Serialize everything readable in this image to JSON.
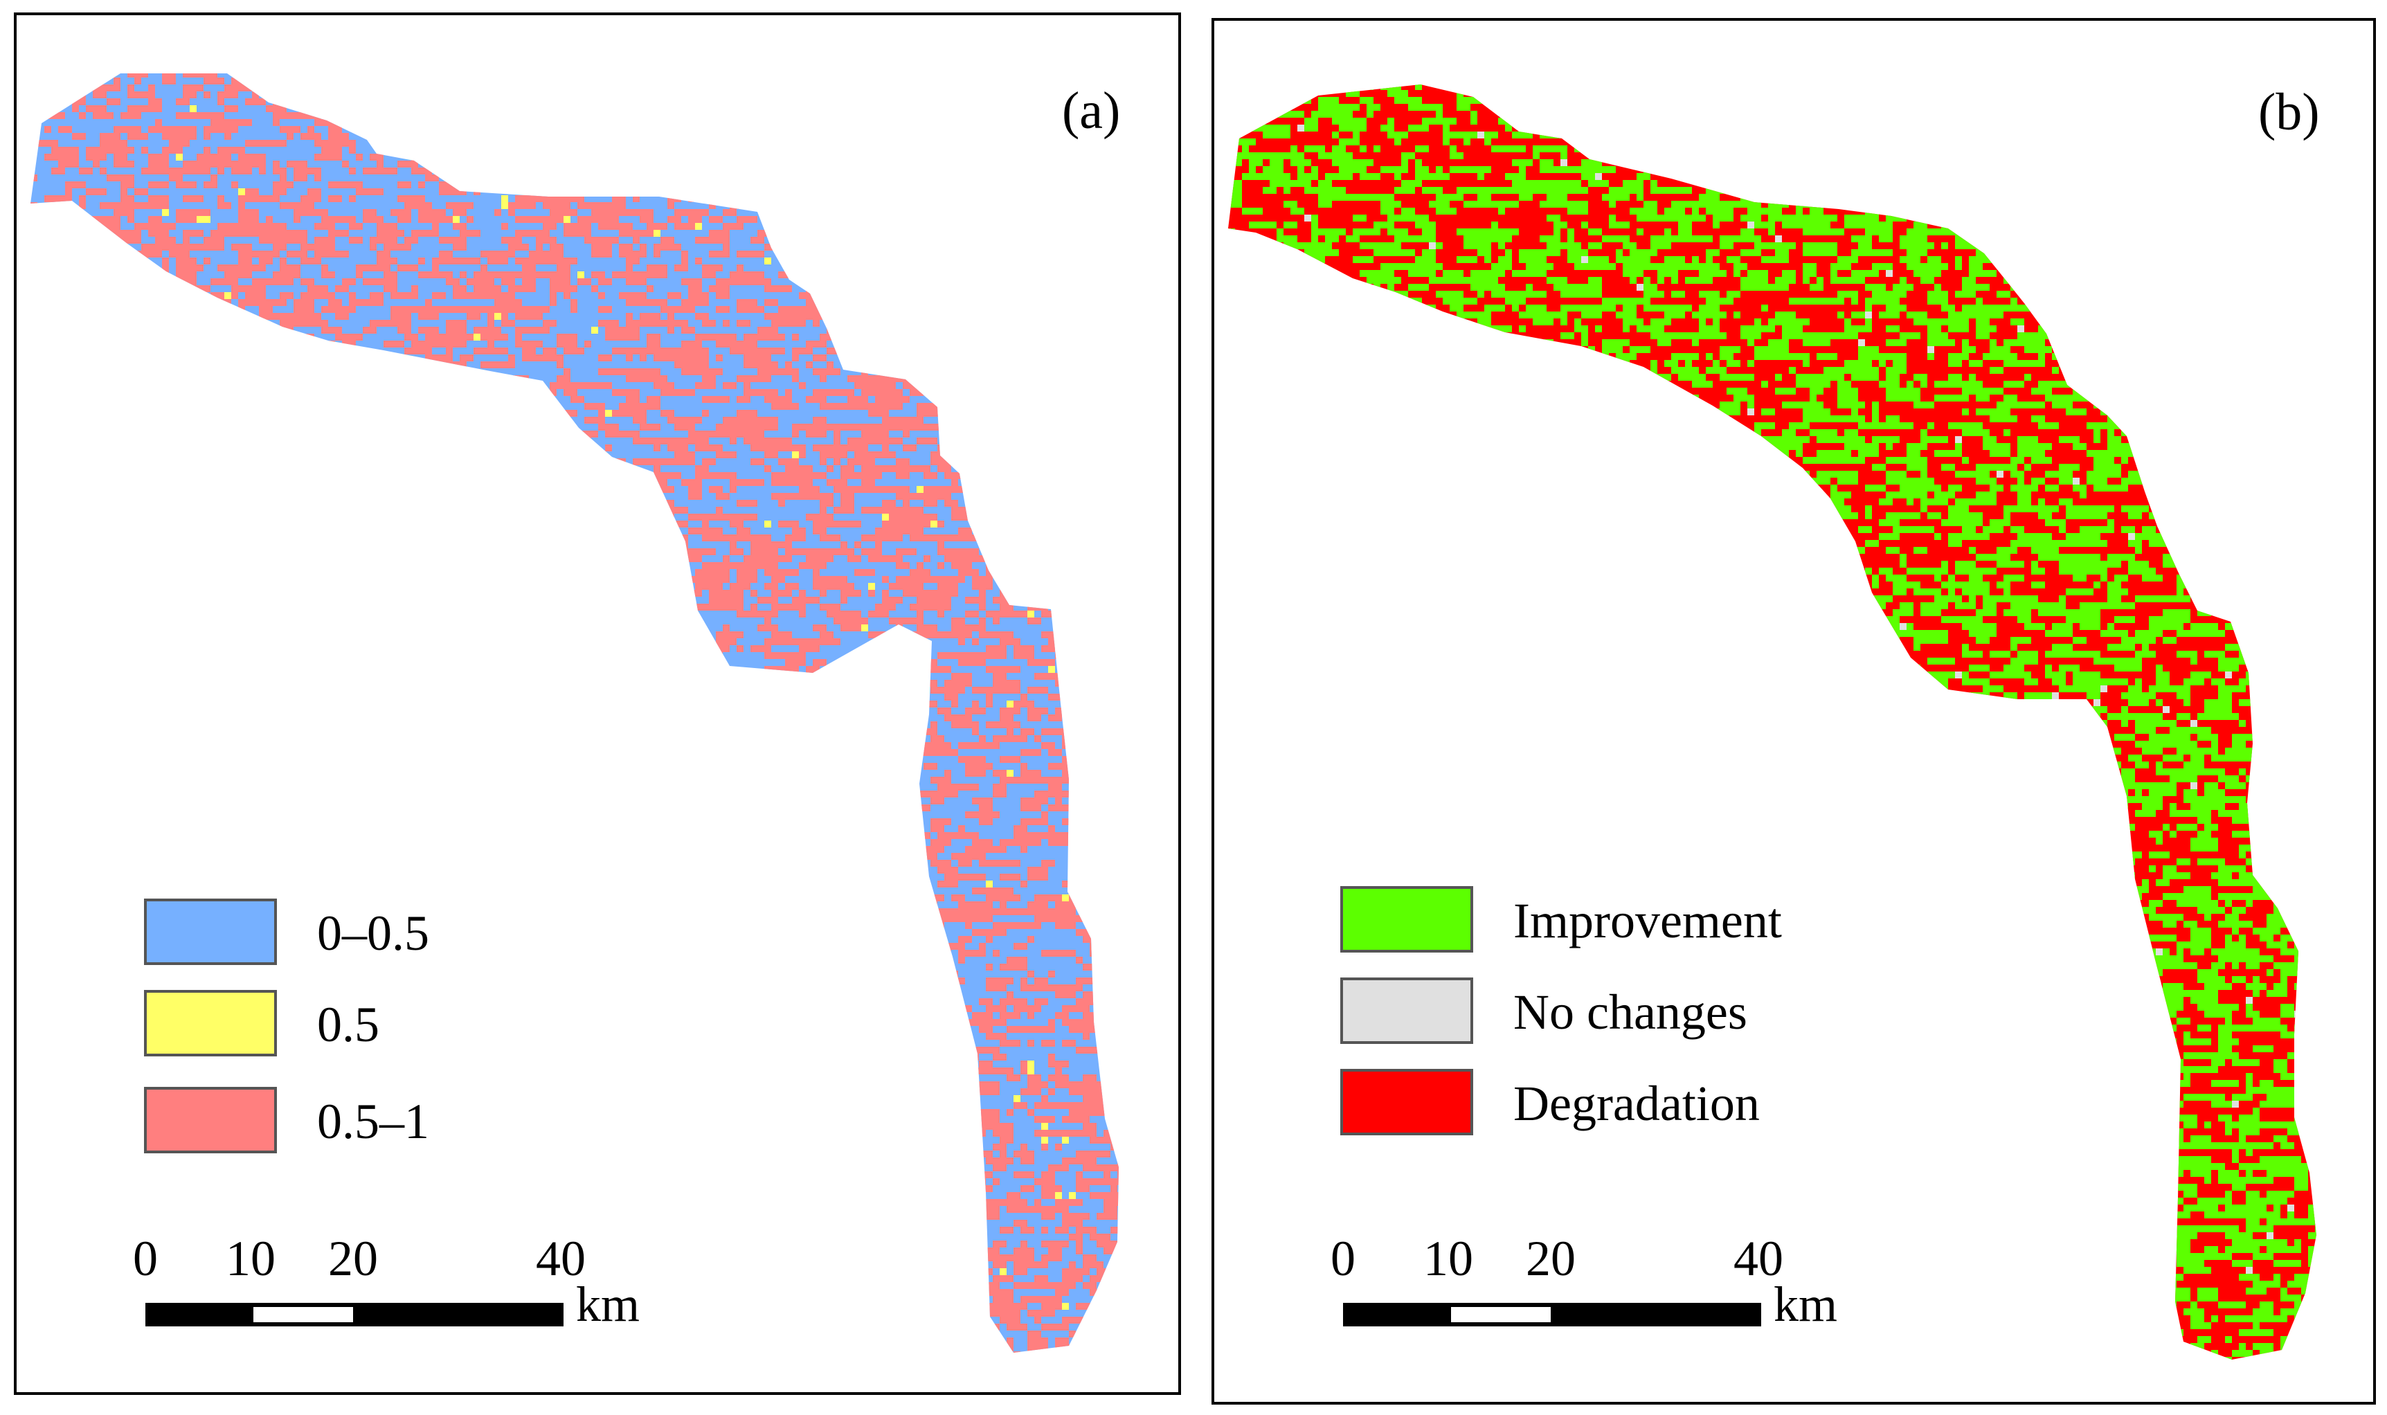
{
  "panels": [
    {
      "id": "a",
      "label": "(a)",
      "legend": [
        {
          "label": "0–0.5",
          "color": "#76b0ff"
        },
        {
          "label": "0.5",
          "color": "#ffff66"
        },
        {
          "label": "0.5–1",
          "color": "#ff7f7f"
        }
      ],
      "scalebar": {
        "ticks": [
          "0",
          "10",
          "20",
          "40"
        ],
        "unit": "km"
      },
      "colors": {
        "base": "#76b0ff",
        "speckle": "#ff7f7f",
        "rare": "#ffff66"
      }
    },
    {
      "id": "b",
      "label": "(b)",
      "legend": [
        {
          "label": "Improvement",
          "color": "#5cff00"
        },
        {
          "label": "No changes",
          "color": "#e0e0e0"
        },
        {
          "label": "Degradation",
          "color": "#ff0000"
        }
      ],
      "scalebar": {
        "ticks": [
          "0",
          "10",
          "20",
          "40"
        ],
        "unit": "km"
      },
      "colors": {
        "base": "#ff0000",
        "speckle": "#5cff00",
        "rare": "#e0e0e0"
      }
    }
  ]
}
